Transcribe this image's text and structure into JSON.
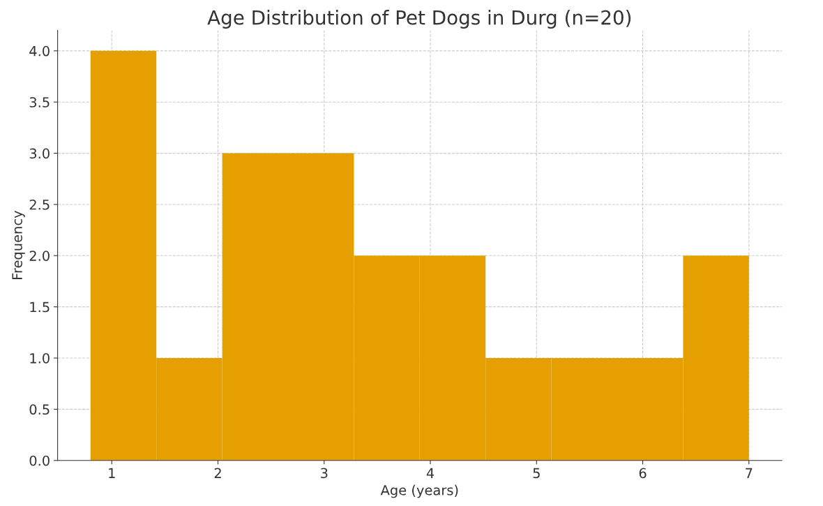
{
  "chart_data": {
    "type": "histogram",
    "title": "Age Distribution of Pet Dogs in Durg (n=20)",
    "xlabel": "Age (years)",
    "ylabel": "Frequency",
    "bins": [
      0.8,
      1.42,
      2.04,
      2.66,
      3.28,
      3.9,
      4.52,
      5.14,
      5.76,
      6.38,
      7.0
    ],
    "values": [
      4,
      1,
      3,
      3,
      2,
      2,
      1,
      1,
      1,
      2
    ],
    "color": "#e5a000",
    "xlim": [
      0.49,
      7.31
    ],
    "xticks": [
      1,
      2,
      3,
      4,
      5,
      6,
      7
    ],
    "ylim": [
      0,
      4.2
    ],
    "yticks": [
      {
        "value": 0,
        "label": "0.0"
      },
      {
        "value": 0.5,
        "label": "0.5"
      },
      {
        "value": 1,
        "label": "1.0"
      },
      {
        "value": 1.5,
        "label": "1.5"
      },
      {
        "value": 2,
        "label": "2.0"
      },
      {
        "value": 2.5,
        "label": "2.5"
      },
      {
        "value": 3,
        "label": "3.0"
      },
      {
        "value": 3.5,
        "label": "3.5"
      },
      {
        "value": 4,
        "label": "4.0"
      }
    ],
    "grid": true,
    "line_style": "dashed"
  }
}
